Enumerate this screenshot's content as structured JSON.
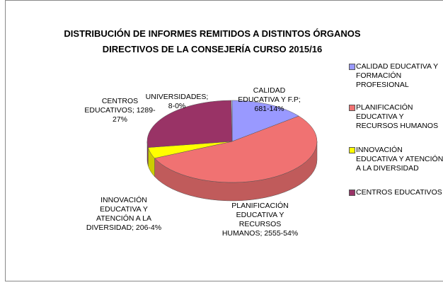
{
  "chart_data": {
    "type": "pie",
    "title": "DISTRIBUCIÓN  DE INFORMES REMITIDOS A DISTINTOS ÓRGANOS DIRECTIVOS DE LA CONSEJERÍA CURSO 2015/16",
    "categories": [
      "CALIDAD EDUCATIVA Y FORMACIÓN PROFESIONAL",
      "PLANIFICACIÓN EDUCATIVA Y RECURSOS HUMANOS",
      "INNOVACIÓN EDUCATIVA Y ATENCIÓN A LA DIVERSIDAD",
      "CENTROS EDUCATIVOS",
      null
    ],
    "values": [
      681,
      2555,
      206,
      1289,
      8
    ],
    "value_labels": [
      "CALIDAD EDUCATIVA Y F.P; 681-14%",
      "PLANIFICACIÓN EDUCATIVA Y RECURSOS HUMANOS;  2555-54%",
      "INNOVACIÓN EDUCATIVA Y ATENCIÓN A LA DIVERSIDAD; 206-4%",
      "CENTROS EDUCATIVOS;  1289-27%",
      "UNIVERSIDADES;  8-0%"
    ],
    "colors": [
      "#9999ff",
      "#f07272",
      "#ffff00",
      "#993366",
      "#ccffff"
    ]
  }
}
